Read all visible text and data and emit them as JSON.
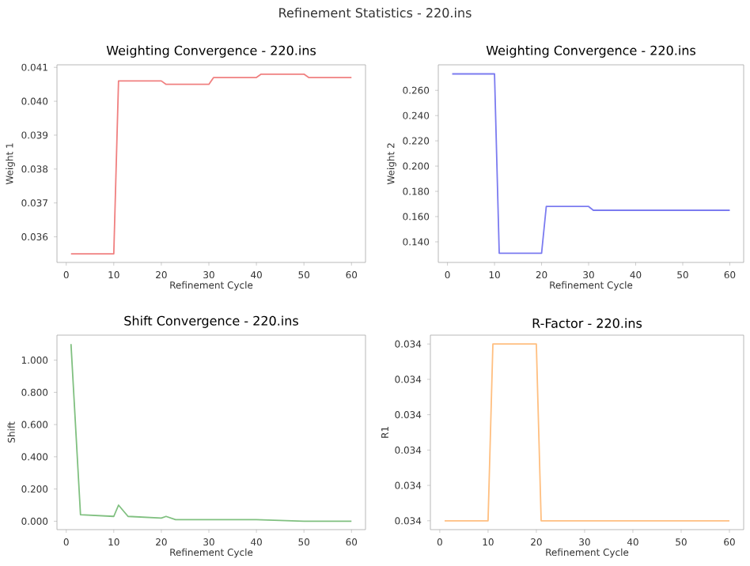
{
  "chart_data": [
    {
      "type": "other",
      "title": "Refinement Statistics - 220.ins"
    },
    {
      "type": "line",
      "title": "Weighting Convergence - 220.ins",
      "xlabel": "Refinement Cycle",
      "ylabel": "Weight 1",
      "xlim": [
        -1.95,
        62.95
      ],
      "ylim": [
        0.035245,
        0.041075
      ],
      "xticks": [
        0,
        10,
        20,
        30,
        40,
        50,
        60
      ],
      "yticks": [
        0.036,
        0.037,
        0.038,
        0.039,
        {
          "value": 0.04,
          "label": "0.040"
        },
        0.041
      ],
      "series": [
        {
          "color": "#f08080",
          "x": [
            1,
            10,
            11,
            20,
            21,
            30,
            31,
            40,
            41,
            50,
            51,
            60
          ],
          "values": [
            0.0355,
            0.0355,
            0.0406,
            0.0406,
            0.0405,
            0.0405,
            0.0407,
            0.0407,
            0.0408,
            0.0408,
            0.0407,
            0.0407
          ]
        }
      ]
    },
    {
      "type": "line",
      "title": "Weighting Convergence - 220.ins",
      "xlabel": "Refinement Cycle",
      "ylabel": "Weight 2",
      "xlim": [
        -1.95,
        62.95
      ],
      "ylim": [
        0.1237,
        0.2802
      ],
      "xticks": [
        0,
        10,
        20,
        30,
        40,
        50,
        60
      ],
      "yticks": [
        {
          "value": 0.14,
          "label": "0.140"
        },
        {
          "value": 0.16,
          "label": "0.160"
        },
        {
          "value": 0.18,
          "label": "0.180"
        },
        {
          "value": 0.2,
          "label": "0.200"
        },
        {
          "value": 0.22,
          "label": "0.220"
        },
        {
          "value": 0.24,
          "label": "0.240"
        },
        {
          "value": 0.26,
          "label": "0.260"
        }
      ],
      "series": [
        {
          "color": "#7b7bf0",
          "x": [
            1,
            10,
            11,
            20,
            21,
            30,
            31,
            60
          ],
          "values": [
            0.273,
            0.273,
            0.131,
            0.131,
            0.168,
            0.168,
            0.165,
            0.165
          ]
        }
      ]
    },
    {
      "type": "line",
      "title": "Shift Convergence - 220.ins",
      "xlabel": "Refinement Cycle",
      "ylabel": "Shift",
      "xlim": [
        -1.95,
        62.95
      ],
      "ylim": [
        -0.052,
        1.155
      ],
      "xticks": [
        0,
        10,
        20,
        30,
        40,
        50,
        60
      ],
      "yticks": [
        {
          "value": 0,
          "label": "0.000"
        },
        {
          "value": 0.2,
          "label": "0.200"
        },
        {
          "value": 0.4,
          "label": "0.400"
        },
        {
          "value": 0.6,
          "label": "0.600"
        },
        {
          "value": 0.8,
          "label": "0.800"
        },
        {
          "value": 1.0,
          "label": "1.000"
        }
      ],
      "series": [
        {
          "color": "#80c080",
          "x": [
            1,
            3,
            10,
            11,
            13,
            20,
            21,
            23,
            30,
            40,
            50,
            60
          ],
          "values": [
            1.1,
            0.04,
            0.03,
            0.1,
            0.03,
            0.02,
            0.03,
            0.01,
            0.01,
            0.01,
            0.0,
            0.0
          ]
        }
      ]
    },
    {
      "type": "line",
      "title": "R-Factor - 220.ins",
      "xlabel": "Refinement Cycle",
      "ylabel": "R1",
      "xlim": [
        -1.95,
        62.95
      ],
      "ylim": [
        0.033995,
        0.034105
      ],
      "xticks": [
        0,
        10,
        20,
        30,
        40,
        50,
        60
      ],
      "yticks": [
        {
          "value": 0.034,
          "label": "0.034"
        },
        {
          "value": 0.03402,
          "label": "0.034"
        },
        {
          "value": 0.03404,
          "label": "0.034"
        },
        {
          "value": 0.03406,
          "label": "0.034"
        },
        {
          "value": 0.03408,
          "label": "0.034"
        },
        {
          "value": 0.0341,
          "label": "0.034"
        }
      ],
      "series": [
        {
          "color": "#ffbf80",
          "x": [
            1,
            10,
            11,
            20,
            21,
            60
          ],
          "values": [
            0.034,
            0.034,
            0.0341,
            0.0341,
            0.034,
            0.034
          ]
        }
      ]
    }
  ]
}
